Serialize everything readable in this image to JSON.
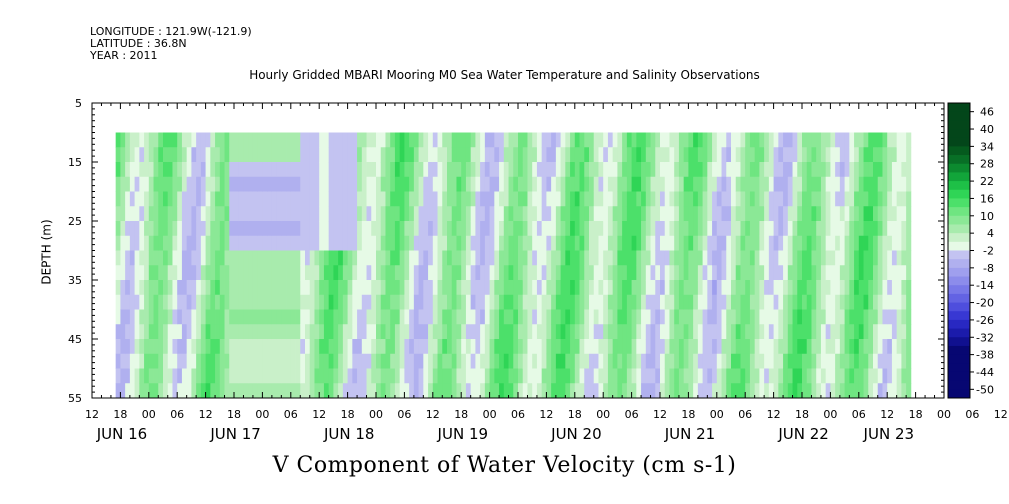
{
  "header": {
    "longitude": "LONGITUDE : 121.9W(-121.9)",
    "latitude": "LATITUDE : 36.8N",
    "year": "YEAR : 2011",
    "title": "Hourly Gridded MBARI Mooring M0 Sea Water Temperature and Salinity Observations"
  },
  "chart_data": {
    "type": "heatmap",
    "title": "Hourly Gridded MBARI Mooring M0 Sea Water Temperature and Salinity Observations",
    "xlabel": "V Component of Water Velocity (cm s-1)",
    "ylabel": "DEPTH (m)",
    "y_ticks": [
      "5",
      "15",
      "25",
      "35",
      "45",
      "55"
    ],
    "y_range": [
      5,
      55
    ],
    "y_inverted": true,
    "x_hour_ticks": [
      "12",
      "18",
      "00",
      "06",
      "12",
      "18",
      "00",
      "06",
      "12",
      "18",
      "00",
      "06",
      "12",
      "18",
      "00",
      "06",
      "12",
      "18",
      "00",
      "06",
      "12",
      "18",
      "00",
      "06",
      "12",
      "18",
      "00",
      "06",
      "12",
      "18",
      "00",
      "06",
      "12"
    ],
    "x_date_labels": [
      "JUN 16",
      "JUN 17",
      "JUN 18",
      "JUN 19",
      "JUN 20",
      "JUN 21",
      "JUN 22",
      "JUN 23"
    ],
    "x_date_label_hour_index": [
      0,
      4,
      8,
      12,
      16,
      20,
      24,
      27
    ],
    "data_x_range_hours": [
      5,
      173
    ],
    "data_depth_range": [
      10,
      55
    ],
    "colorbar": {
      "labels": [
        "46",
        "40",
        "34",
        "28",
        "22",
        "16",
        "10",
        "4",
        "-2",
        "-8",
        "-14",
        "-20",
        "-26",
        "-32",
        "-38",
        "-44",
        "-50"
      ],
      "range": [
        -50,
        50
      ],
      "step": 3
    },
    "grid": false,
    "features": [
      {
        "kind": "mostly-positive-band",
        "hours": [
          0,
          120
        ],
        "value_range": [
          -6,
          22
        ]
      },
      {
        "kind": "negative-pocket",
        "hours": [
          30,
          50
        ],
        "depths": [
          18,
          30
        ],
        "value": -4
      }
    ]
  }
}
